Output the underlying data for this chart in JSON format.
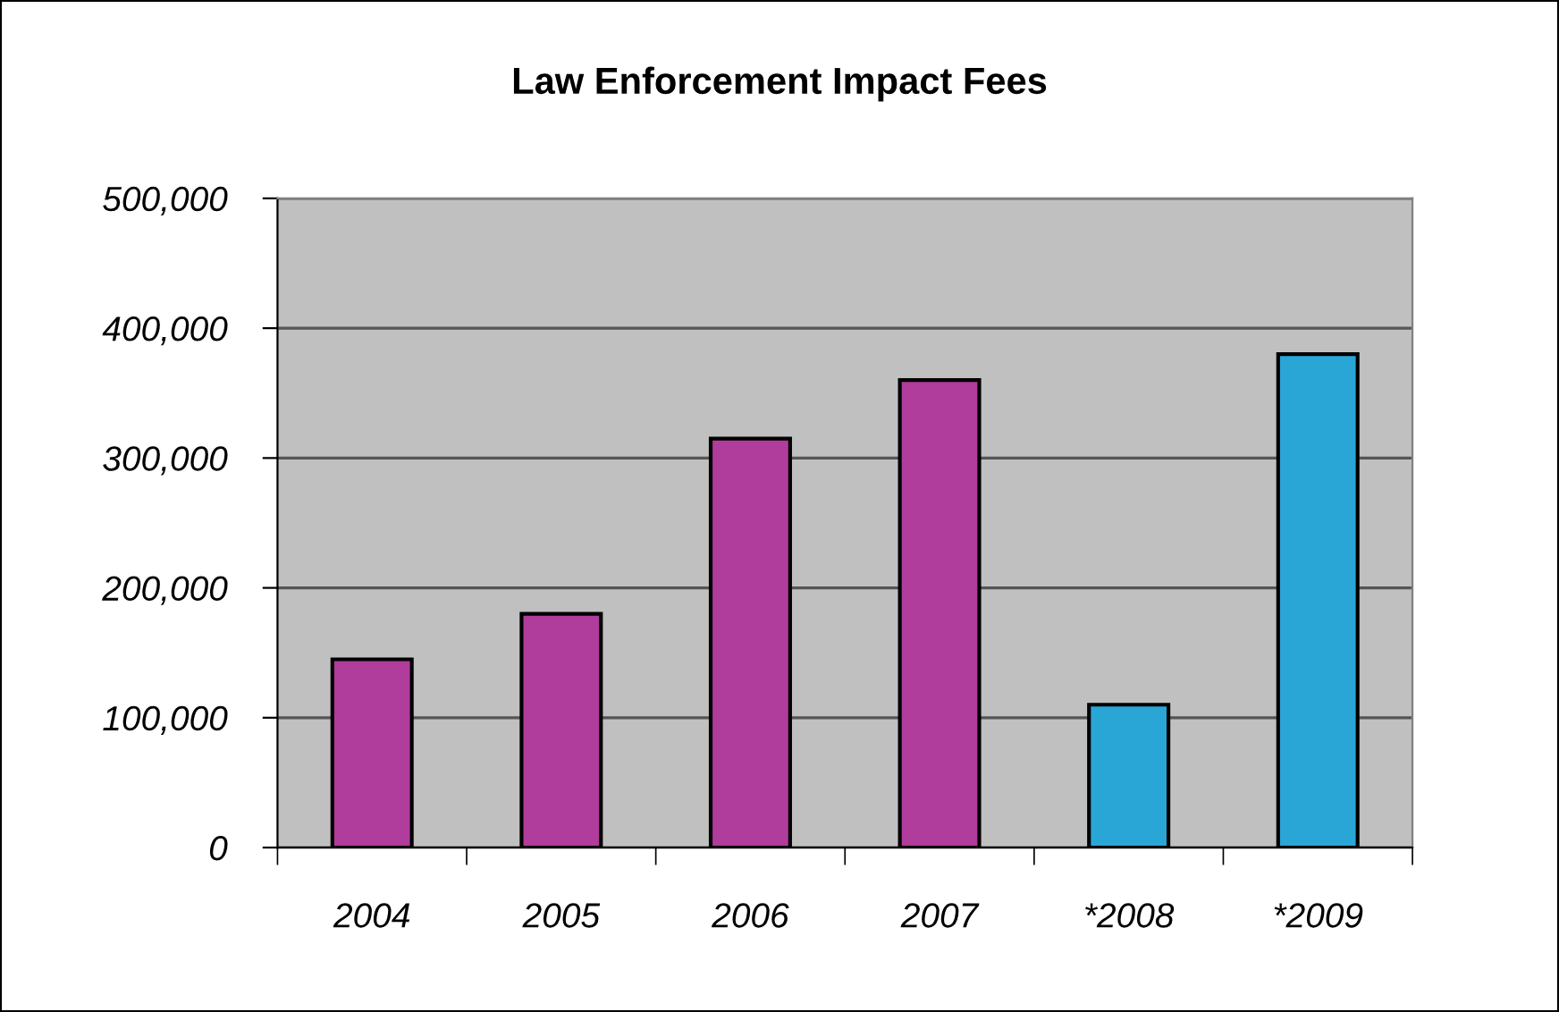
{
  "chart_data": {
    "type": "bar",
    "title": "Law Enforcement Impact Fees",
    "categories": [
      "2004",
      "2005",
      "2006",
      "2007",
      "*2008",
      "*2009"
    ],
    "values": [
      145000,
      180000,
      315000,
      360000,
      110000,
      380000
    ],
    "colors": [
      "#b03c9c",
      "#b03c9c",
      "#b03c9c",
      "#b03c9c",
      "#2aa6d6",
      "#2aa6d6"
    ],
    "ylim": [
      0,
      500000
    ],
    "yticks": [
      0,
      {
        "value": 100000,
        "label": "100,000"
      },
      {
        "value": 200000,
        "label": "200,000"
      },
      {
        "value": 300000,
        "label": "300,000"
      },
      {
        "value": 400000,
        "label": "400,000"
      },
      {
        "value": 500000,
        "label": "500,000"
      }
    ],
    "grid": "y"
  }
}
